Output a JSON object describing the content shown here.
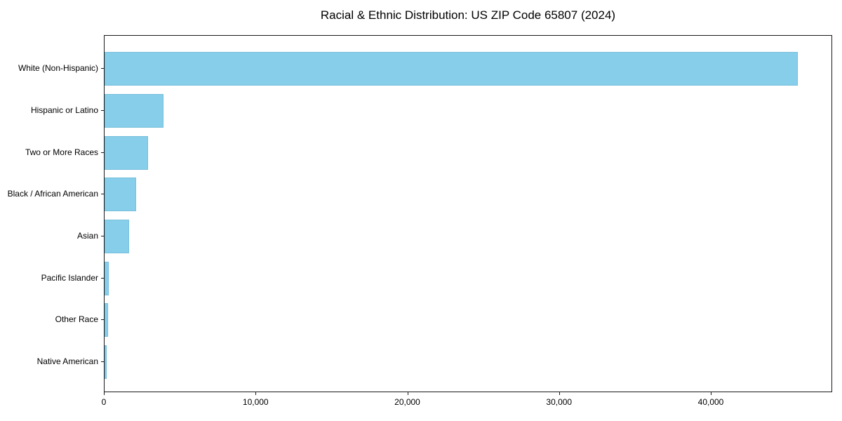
{
  "chart_data": {
    "type": "bar",
    "orientation": "horizontal",
    "title": "Racial & Ethnic Distribution: US ZIP Code 65807 (2024)",
    "categories": [
      "White (Non-Hispanic)",
      "Hispanic or Latino",
      "Two or More Races",
      "Black / African American",
      "Asian",
      "Pacific Islander",
      "Other Race",
      "Native American"
    ],
    "values": [
      45700,
      3900,
      2870,
      2080,
      1620,
      260,
      220,
      160
    ],
    "xlabel": "",
    "ylabel": "",
    "xlim": [
      0,
      48000
    ],
    "x_ticks": [
      0,
      10000,
      20000,
      30000,
      40000
    ],
    "x_tick_labels": [
      "0",
      "10,000",
      "20,000",
      "30,000",
      "40,000"
    ],
    "bar_color": "#87CEEB",
    "axis_color": "#1a1a1a",
    "background": "#ffffff",
    "grid": false,
    "legend_position": "none"
  }
}
